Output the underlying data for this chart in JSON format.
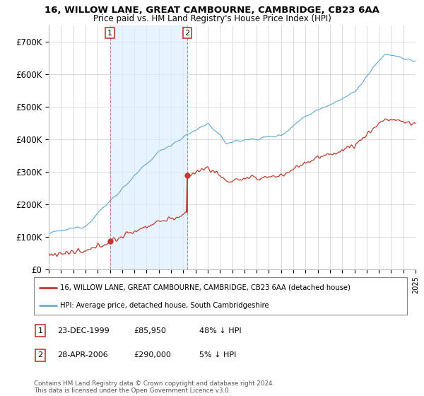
{
  "title_line1": "16, WILLOW LANE, GREAT CAMBOURNE, CAMBRIDGE, CB23 6AA",
  "title_line2": "Price paid vs. HM Land Registry's House Price Index (HPI)",
  "ylim": [
    0,
    750000
  ],
  "yticks": [
    0,
    100000,
    200000,
    300000,
    400000,
    500000,
    600000,
    700000
  ],
  "ytick_labels": [
    "£0",
    "£100K",
    "£200K",
    "£300K",
    "£400K",
    "£500K",
    "£600K",
    "£700K"
  ],
  "xlim_left": 1995.0,
  "xlim_right": 2025.0,
  "purchase1_date": 2000.0,
  "purchase1_price": 85950,
  "purchase1_label": "1",
  "purchase2_date": 2006.33,
  "purchase2_price": 290000,
  "purchase2_label": "2",
  "hpi_line_color": "#6baed6",
  "price_line_color": "#c0392b",
  "marker_color": "#c0392b",
  "vline_color": "#e8a0a0",
  "shade_color": "#ddeeff",
  "legend_line1": "16, WILLOW LANE, GREAT CAMBOURNE, CAMBRIDGE, CB23 6AA (detached house)",
  "legend_line2": "HPI: Average price, detached house, South Cambridgeshire",
  "info1_date": "23-DEC-1999",
  "info1_price": "£85,950",
  "info1_pct": "48% ↓ HPI",
  "info2_date": "28-APR-2006",
  "info2_price": "£290,000",
  "info2_pct": "5% ↓ HPI",
  "footer": "Contains HM Land Registry data © Crown copyright and database right 2024.\nThis data is licensed under the Open Government Licence v3.0.",
  "background_color": "#ffffff",
  "grid_color": "#cccccc"
}
